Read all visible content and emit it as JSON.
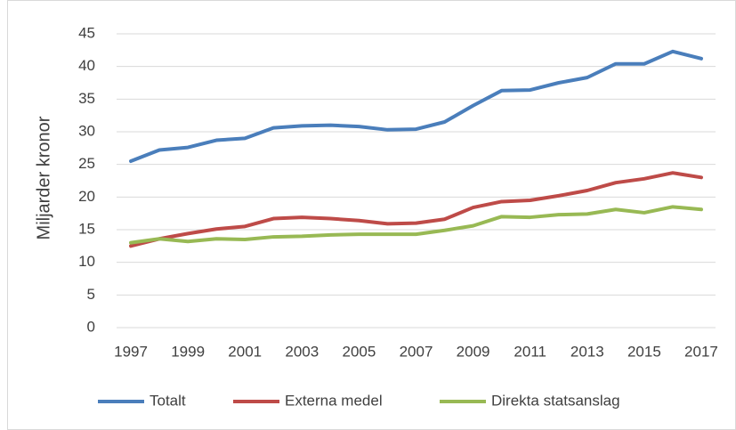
{
  "chart_data": {
    "type": "line",
    "y_label": "Miljarder kronor",
    "x": [
      1997,
      1998,
      1999,
      2000,
      2001,
      2002,
      2003,
      2004,
      2005,
      2006,
      2007,
      2008,
      2009,
      2010,
      2011,
      2012,
      2013,
      2014,
      2015,
      2016,
      2017
    ],
    "xlim": [
      1996.5,
      2017.5
    ],
    "xticks": [
      1997,
      1999,
      2001,
      2003,
      2005,
      2007,
      2009,
      2011,
      2013,
      2015,
      2017
    ],
    "ylim": [
      0,
      45
    ],
    "yticks": [
      0,
      5,
      10,
      15,
      20,
      25,
      30,
      35,
      40,
      45
    ],
    "grid": true,
    "legend": "bottom",
    "series": [
      {
        "name": "Totalt",
        "color": "#4a7ebb",
        "values": [
          25.5,
          27.2,
          27.6,
          28.7,
          29.0,
          30.6,
          30.9,
          31.0,
          30.8,
          30.3,
          30.4,
          31.5,
          34.0,
          36.3,
          36.4,
          37.5,
          38.3,
          40.4,
          40.4,
          42.3,
          41.2
        ]
      },
      {
        "name": "Externa medel",
        "color": "#be4b48",
        "values": [
          12.5,
          13.6,
          14.4,
          15.1,
          15.5,
          16.7,
          16.9,
          16.7,
          16.4,
          15.9,
          16.0,
          16.6,
          18.4,
          19.3,
          19.5,
          20.2,
          21.0,
          22.2,
          22.8,
          23.7,
          23.0
        ]
      },
      {
        "name": "Direkta statsanslag",
        "color": "#98b954",
        "values": [
          13.0,
          13.6,
          13.2,
          13.6,
          13.5,
          13.9,
          14.0,
          14.2,
          14.3,
          14.3,
          14.3,
          14.9,
          15.6,
          17.0,
          16.9,
          17.3,
          17.4,
          18.1,
          17.6,
          18.5,
          18.1
        ]
      }
    ]
  }
}
